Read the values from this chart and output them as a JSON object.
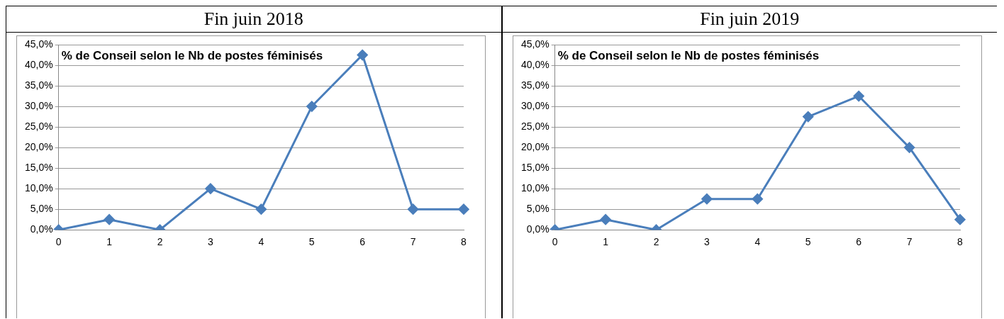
{
  "chart_data": [
    {
      "type": "line",
      "title": "Fin juin 2018",
      "subtitle": "% de Conseil selon le Nb de postes féminisés",
      "categories": [
        "0",
        "1",
        "2",
        "3",
        "4",
        "5",
        "6",
        "7",
        "8"
      ],
      "values": [
        0,
        2.5,
        0,
        10,
        5,
        30,
        42.5,
        5,
        5
      ],
      "color": "#4a7ebb",
      "ylim": [
        0,
        45
      ],
      "yticks": [
        {
          "value": 0,
          "label": "0,0%"
        },
        {
          "value": 5,
          "label": "5,0%"
        },
        {
          "value": 10,
          "label": "10,0%"
        },
        {
          "value": 15,
          "label": "15,0%"
        },
        {
          "value": 20,
          "label": "20,0%"
        },
        {
          "value": 25,
          "label": "25,0%"
        },
        {
          "value": 30,
          "label": "30,0%"
        },
        {
          "value": 35,
          "label": "35,0%"
        },
        {
          "value": 40,
          "label": "40,0%"
        },
        {
          "value": 45,
          "label": "45,0%"
        }
      ],
      "grid": "y",
      "marker": "diamond"
    },
    {
      "type": "line",
      "title": "Fin juin 2019",
      "subtitle": "% de Conseil selon le Nb de postes féminisés",
      "categories": [
        "0",
        "1",
        "2",
        "3",
        "4",
        "5",
        "6",
        "7",
        "8"
      ],
      "values": [
        0,
        2.5,
        0,
        7.5,
        7.5,
        27.5,
        32.5,
        20,
        2.5
      ],
      "color": "#4a7ebb",
      "ylim": [
        0,
        45
      ],
      "yticks": [
        {
          "value": 0,
          "label": "0,0%"
        },
        {
          "value": 5,
          "label": "5,0%"
        },
        {
          "value": 10,
          "label": "10,0%"
        },
        {
          "value": 15,
          "label": "15,0%"
        },
        {
          "value": 20,
          "label": "20,0%"
        },
        {
          "value": 25,
          "label": "25,0%"
        },
        {
          "value": 30,
          "label": "30,0%"
        },
        {
          "value": 35,
          "label": "35,0%"
        },
        {
          "value": 40,
          "label": "40,0%"
        },
        {
          "value": 45,
          "label": "45,0%"
        }
      ],
      "grid": "y",
      "marker": "diamond"
    }
  ]
}
